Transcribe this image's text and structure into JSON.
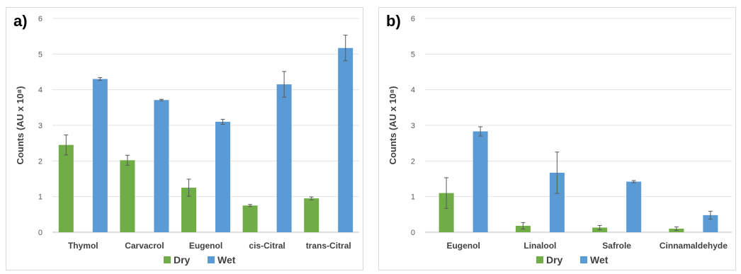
{
  "chart_data": [
    {
      "panel_label": "a)",
      "type": "bar",
      "categories": [
        "Thymol",
        "Carvacrol",
        "Eugenol",
        "cis-Citral",
        "trans-Citral"
      ],
      "series": [
        {
          "name": "Dry",
          "color": "#70ad47",
          "values": [
            2.45,
            2.02,
            1.25,
            0.75,
            0.95
          ],
          "errors": [
            0.28,
            0.14,
            0.24,
            0.03,
            0.04
          ]
        },
        {
          "name": "Wet",
          "color": "#5b9bd5",
          "values": [
            4.3,
            3.71,
            3.1,
            4.15,
            5.17
          ],
          "errors": [
            0.04,
            0.02,
            0.07,
            0.36,
            0.36
          ]
        }
      ],
      "ylabel": "Counts (AU x 10⁸)",
      "yticks": [
        "0",
        "1",
        "2",
        "3",
        "4",
        "5",
        "6"
      ],
      "ylim": [
        0,
        6
      ],
      "grid": true,
      "legend": "bottom"
    },
    {
      "panel_label": "b)",
      "type": "bar",
      "categories": [
        "Eugenol",
        "Linalool",
        "Safrole",
        "Cinnamaldehyde"
      ],
      "series": [
        {
          "name": "Dry",
          "color": "#70ad47",
          "values": [
            1.1,
            0.18,
            0.13,
            0.1
          ],
          "errors": [
            0.43,
            0.09,
            0.06,
            0.05
          ]
        },
        {
          "name": "Wet",
          "color": "#5b9bd5",
          "values": [
            2.83,
            1.67,
            1.42,
            0.48
          ],
          "errors": [
            0.13,
            0.58,
            0.03,
            0.11
          ]
        }
      ],
      "ylabel": "Counts (AU x 10⁸)",
      "yticks": [
        "0",
        "1",
        "2",
        "3",
        "4",
        "5",
        "6"
      ],
      "ylim": [
        0,
        6
      ],
      "grid": true,
      "legend": "bottom"
    }
  ]
}
